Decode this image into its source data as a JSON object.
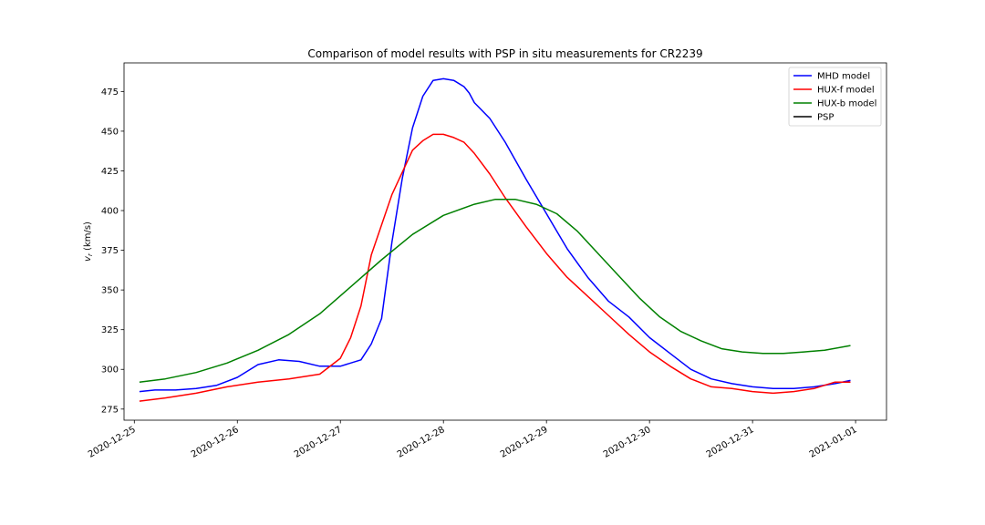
{
  "chart_data": {
    "type": "line",
    "title": "Comparison of model results with PSP in situ measurements for CR2239",
    "xlabel": "",
    "ylabel": "v_r (km/s)",
    "ylabel_main": "v",
    "ylabel_sub": "r",
    "ylabel_unit": " (km/s)",
    "xlim": [
      -0.1,
      7.3
    ],
    "ylim": [
      268,
      493
    ],
    "x_ticks": [
      0,
      1,
      2,
      3,
      4,
      5,
      6,
      7
    ],
    "x_tick_labels": [
      "2020-12-25",
      "2020-12-26",
      "2020-12-27",
      "2020-12-28",
      "2020-12-29",
      "2020-12-30",
      "2020-12-31",
      "2021-01-01"
    ],
    "y_ticks": [
      275,
      300,
      325,
      350,
      375,
      400,
      425,
      450,
      475
    ],
    "y_tick_labels": [
      "275",
      "300",
      "325",
      "350",
      "375",
      "400",
      "425",
      "450",
      "475"
    ],
    "legend_position": "upper right",
    "grid": false,
    "series": [
      {
        "name": "MHD model",
        "color": "#0000ff",
        "x": [
          0.05,
          0.2,
          0.4,
          0.6,
          0.8,
          1.0,
          1.2,
          1.4,
          1.6,
          1.8,
          2.0,
          2.2,
          2.3,
          2.4,
          2.5,
          2.6,
          2.7,
          2.8,
          2.9,
          3.0,
          3.1,
          3.2,
          3.25,
          3.3,
          3.45,
          3.6,
          3.8,
          4.0,
          4.2,
          4.4,
          4.6,
          4.8,
          5.0,
          5.2,
          5.4,
          5.6,
          5.8,
          6.0,
          6.2,
          6.4,
          6.6,
          6.8,
          6.95
        ],
        "y": [
          286,
          287,
          287,
          288,
          290,
          295,
          303,
          306,
          305,
          302,
          302,
          306,
          316,
          332,
          380,
          420,
          452,
          472,
          482,
          483,
          482,
          478,
          474,
          468,
          458,
          443,
          420,
          398,
          376,
          358,
          343,
          333,
          320,
          310,
          300,
          294,
          291,
          289,
          288,
          288,
          289,
          291,
          293
        ],
        "values": [
          286,
          287,
          287,
          288,
          290,
          295,
          303,
          306,
          305,
          302,
          302,
          306,
          316,
          332,
          380,
          420,
          452,
          472,
          482,
          483,
          482,
          478,
          474,
          468,
          458,
          443,
          420,
          398,
          376,
          358,
          343,
          333,
          320,
          310,
          300,
          294,
          291,
          289,
          288,
          288,
          289,
          291,
          293
        ]
      },
      {
        "name": "HUX-f model",
        "color": "#ff0000",
        "x": [
          0.05,
          0.3,
          0.6,
          0.9,
          1.2,
          1.5,
          1.8,
          2.0,
          2.1,
          2.2,
          2.3,
          2.5,
          2.7,
          2.8,
          2.9,
          3.0,
          3.1,
          3.2,
          3.3,
          3.45,
          3.6,
          3.8,
          4.0,
          4.2,
          4.4,
          4.6,
          4.8,
          5.0,
          5.2,
          5.4,
          5.6,
          5.8,
          6.0,
          6.2,
          6.4,
          6.6,
          6.8,
          6.95
        ],
        "y": [
          280,
          282,
          285,
          289,
          292,
          294,
          297,
          307,
          320,
          340,
          372,
          410,
          438,
          444,
          448,
          448,
          446,
          443,
          436,
          423,
          408,
          390,
          373,
          358,
          346,
          334,
          322,
          311,
          302,
          294,
          289,
          288,
          286,
          285,
          286,
          288,
          292,
          292
        ],
        "values": [
          280,
          282,
          285,
          289,
          292,
          294,
          297,
          307,
          320,
          340,
          372,
          410,
          438,
          444,
          448,
          448,
          446,
          443,
          436,
          423,
          408,
          390,
          373,
          358,
          346,
          334,
          322,
          311,
          302,
          294,
          289,
          288,
          286,
          285,
          286,
          288,
          292,
          292
        ]
      },
      {
        "name": "HUX-b model",
        "color": "#008000",
        "x": [
          0.05,
          0.3,
          0.6,
          0.9,
          1.2,
          1.5,
          1.8,
          2.1,
          2.4,
          2.7,
          3.0,
          3.3,
          3.5,
          3.7,
          3.9,
          4.1,
          4.3,
          4.5,
          4.7,
          4.9,
          5.1,
          5.3,
          5.5,
          5.7,
          5.9,
          6.1,
          6.3,
          6.5,
          6.7,
          6.95
        ],
        "y": [
          292,
          294,
          298,
          304,
          312,
          322,
          335,
          352,
          369,
          385,
          397,
          404,
          407,
          407,
          404,
          398,
          387,
          373,
          359,
          345,
          333,
          324,
          318,
          313,
          311,
          310,
          310,
          311,
          312,
          315
        ],
        "values": [
          292,
          294,
          298,
          304,
          312,
          322,
          335,
          352,
          369,
          385,
          397,
          404,
          407,
          407,
          404,
          398,
          387,
          373,
          359,
          345,
          333,
          324,
          318,
          313,
          311,
          310,
          310,
          311,
          312,
          315
        ]
      },
      {
        "name": "PSP",
        "color": "#000000",
        "x": [],
        "y": [],
        "values": []
      }
    ]
  }
}
